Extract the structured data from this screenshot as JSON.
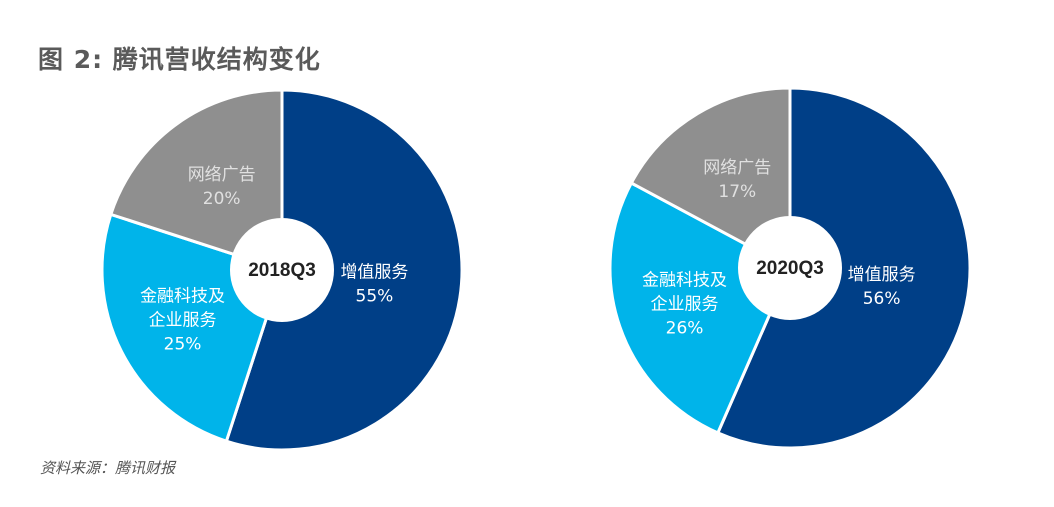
{
  "title": "图 2: 腾讯营收结构变化",
  "source": "资料来源：腾讯财报",
  "colors": {
    "value_added": "#003f87",
    "fintech": "#00b4ea",
    "advertising": "#8f8f8f",
    "hole": "#ffffff",
    "label_dark_bg": "#ffffff",
    "label_ad": "#e0e0e0",
    "center_text": "#222222"
  },
  "chart_data": [
    {
      "type": "pie",
      "center_label": "2018Q3",
      "categories": [
        "增值服务",
        "金融科技及企业服务",
        "网络广告"
      ],
      "values": [
        55,
        25,
        20
      ],
      "value_labels": [
        "55%",
        "25%",
        "20%"
      ],
      "label_lines": [
        [
          "增值服务"
        ],
        [
          "金融科技及",
          "企业服务"
        ],
        [
          "网络广告"
        ]
      ],
      "start_angle_deg": 0,
      "direction": "clockwise",
      "legend": "none"
    },
    {
      "type": "pie",
      "center_label": "2020Q3",
      "categories": [
        "增值服务",
        "金融科技及企业服务",
        "网络广告"
      ],
      "values": [
        56,
        26,
        17
      ],
      "value_labels": [
        "56%",
        "26%",
        "17%"
      ],
      "label_lines": [
        [
          "增值服务"
        ],
        [
          "金融科技及",
          "企业服务"
        ],
        [
          "网络广告"
        ]
      ],
      "start_angle_deg": 0,
      "direction": "clockwise",
      "legend": "none"
    }
  ]
}
